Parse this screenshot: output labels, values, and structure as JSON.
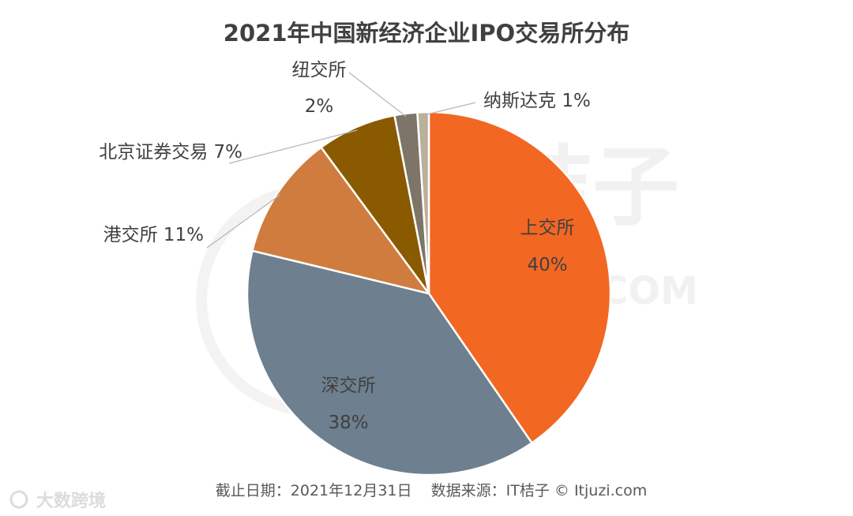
{
  "chart_data": {
    "type": "pie",
    "title": "2021年中国新经济企业IPO交易所分布",
    "slices": [
      {
        "name": "上交所",
        "value": 40,
        "value_label": "40%",
        "color": "#f26722"
      },
      {
        "name": "深交所",
        "value": 38,
        "value_label": "38%",
        "color": "#6e7f8f"
      },
      {
        "name": "港交所",
        "value": 11,
        "value_label": "11%",
        "color": "#d07c3e"
      },
      {
        "name": "北京证券交易",
        "value": 7,
        "value_label": "7%",
        "color": "#8a5a00"
      },
      {
        "name": "纽交所",
        "value": 2,
        "value_label": "2%",
        "color": "#7d7568"
      },
      {
        "name": "纳斯达克",
        "value": 1,
        "value_label": "1%",
        "color": "#b9b19c"
      }
    ],
    "start_angle": "12 o'clock",
    "direction": "clockwise"
  },
  "footer": {
    "text": "截止日期：2021年12月31日    数据来源：IT桔子 © Itjuzi.com"
  },
  "watermark": {
    "center": "桔子",
    "com": "COM",
    "corner": "大数跨境"
  }
}
